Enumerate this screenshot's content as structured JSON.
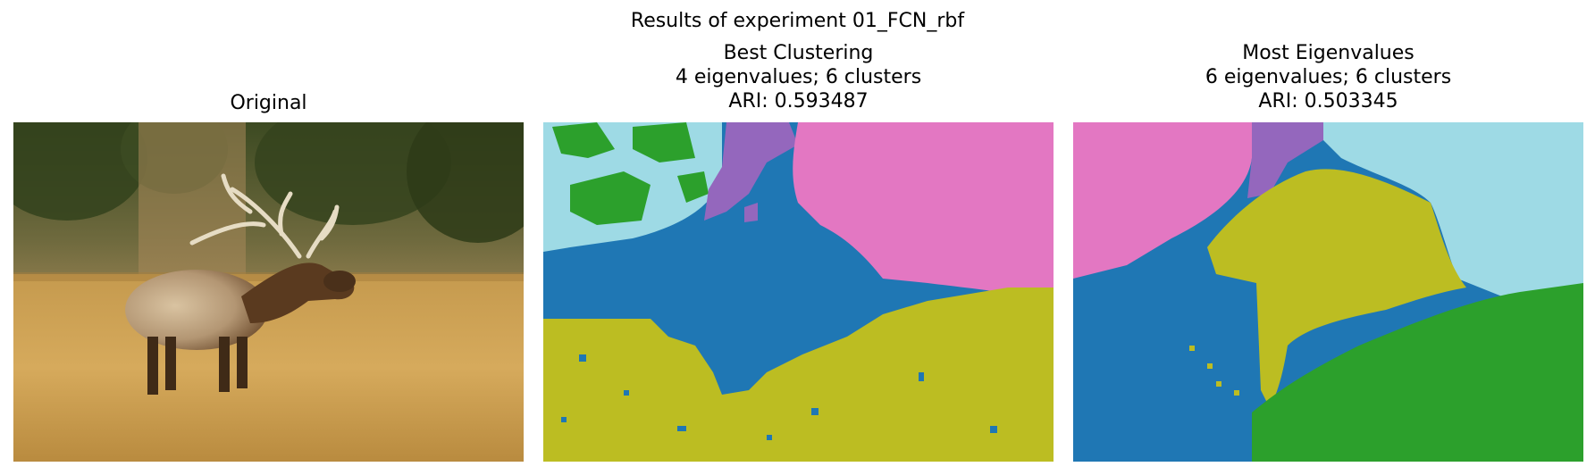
{
  "figure": {
    "suptitle": "Results of experiment 01_FCN_rbf"
  },
  "panels": [
    {
      "title_lines": [
        "Original"
      ],
      "kind": "photo",
      "description_icon": "elk-photo"
    },
    {
      "title_lines": [
        "Best Clustering",
        "4 eigenvalues; 6 clusters",
        "ARI: 0.593487"
      ],
      "kind": "segmentation"
    },
    {
      "title_lines": [
        "Most Eigenvalues",
        "6 eigenvalues; 6 clusters",
        "ARI: 0.503345"
      ],
      "kind": "segmentation"
    }
  ],
  "colors": {
    "blue": "#1f77b4",
    "pink": "#e377c2",
    "purple": "#9467bd",
    "olive": "#bcbd22",
    "cyan": "#9edae5",
    "green": "#2ca02c"
  }
}
